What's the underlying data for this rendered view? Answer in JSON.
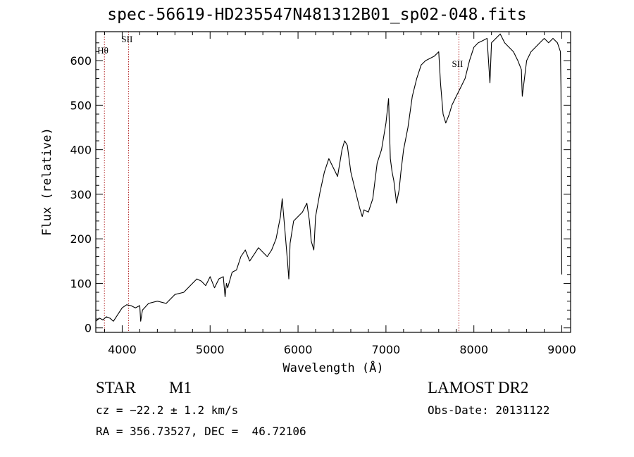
{
  "title": "spec-56619-HD235547N481312B01_sp02-048.fits",
  "info": {
    "object_class": "STAR",
    "subclass": "M1",
    "cz": "cz = −22.2 ± 1.2 km/s",
    "radec": "RA = 356.73527, DEC =  46.72106",
    "survey": "LAMOST DR2",
    "obs_date": "Obs-Date: 20131122"
  },
  "chart_data": {
    "type": "line",
    "xlabel": "Wavelength (Å)",
    "ylabel": "Flux (relative)",
    "xlim": [
      3700,
      9100
    ],
    "ylim": [
      -10,
      665
    ],
    "xticks": [
      4000,
      5000,
      6000,
      7000,
      8000,
      9000
    ],
    "yticks": [
      0,
      100,
      200,
      300,
      400,
      500,
      600
    ],
    "line_color": "#000000",
    "marker_color": "#b22222",
    "lines": [
      {
        "label": "Hθ",
        "x": 3798
      },
      {
        "label": "SII",
        "x": 4072
      },
      {
        "label": "SII",
        "x": 7830
      }
    ],
    "series": [
      {
        "x": [
          3700,
          3740,
          3780,
          3820,
          3860,
          3900,
          3950,
          4000,
          4050,
          4100,
          4150,
          4200,
          4210,
          4230,
          4300,
          4400,
          4500,
          4600,
          4700,
          4800,
          4850,
          4900,
          4950,
          5000,
          5050,
          5100,
          5150,
          5170,
          5185,
          5200,
          5250,
          5300,
          5350,
          5400,
          5450,
          5500,
          5550,
          5600,
          5650,
          5700,
          5750,
          5800,
          5820,
          5850,
          5880,
          5895,
          5910,
          5950,
          6000,
          6050,
          6100,
          6130,
          6150,
          6180,
          6200,
          6250,
          6300,
          6350,
          6400,
          6450,
          6500,
          6530,
          6560,
          6600,
          6650,
          6700,
          6730,
          6750,
          6800,
          6850,
          6900,
          6950,
          7000,
          7030,
          7050,
          7070,
          7090,
          7120,
          7150,
          7170,
          7200,
          7250,
          7300,
          7350,
          7400,
          7450,
          7500,
          7550,
          7600,
          7620,
          7650,
          7680,
          7700,
          7720,
          7750,
          7800,
          7850,
          7900,
          7950,
          8000,
          8050,
          8100,
          8150,
          8183,
          8200,
          8250,
          8300,
          8350,
          8400,
          8450,
          8500,
          8540,
          8550,
          8600,
          8650,
          8700,
          8750,
          8800,
          8850,
          8900,
          8950,
          8985,
          8990,
          9000
        ],
        "y": [
          15,
          22,
          18,
          25,
          22,
          15,
          30,
          45,
          52,
          50,
          45,
          50,
          15,
          40,
          55,
          60,
          55,
          75,
          80,
          100,
          110,
          105,
          95,
          115,
          90,
          110,
          115,
          70,
          100,
          90,
          125,
          130,
          160,
          175,
          150,
          165,
          180,
          170,
          160,
          175,
          200,
          250,
          290,
          220,
          150,
          110,
          190,
          240,
          250,
          260,
          280,
          240,
          195,
          175,
          250,
          305,
          350,
          380,
          360,
          340,
          400,
          420,
          410,
          350,
          310,
          270,
          250,
          265,
          260,
          290,
          370,
          400,
          460,
          515,
          380,
          350,
          330,
          280,
          310,
          350,
          400,
          450,
          520,
          560,
          590,
          600,
          605,
          610,
          620,
          550,
          480,
          460,
          470,
          480,
          500,
          520,
          540,
          560,
          600,
          630,
          640,
          645,
          650,
          550,
          640,
          650,
          660,
          640,
          630,
          620,
          600,
          580,
          520,
          600,
          620,
          630,
          640,
          650,
          640,
          650,
          640,
          620,
          540,
          120
        ]
      }
    ]
  }
}
